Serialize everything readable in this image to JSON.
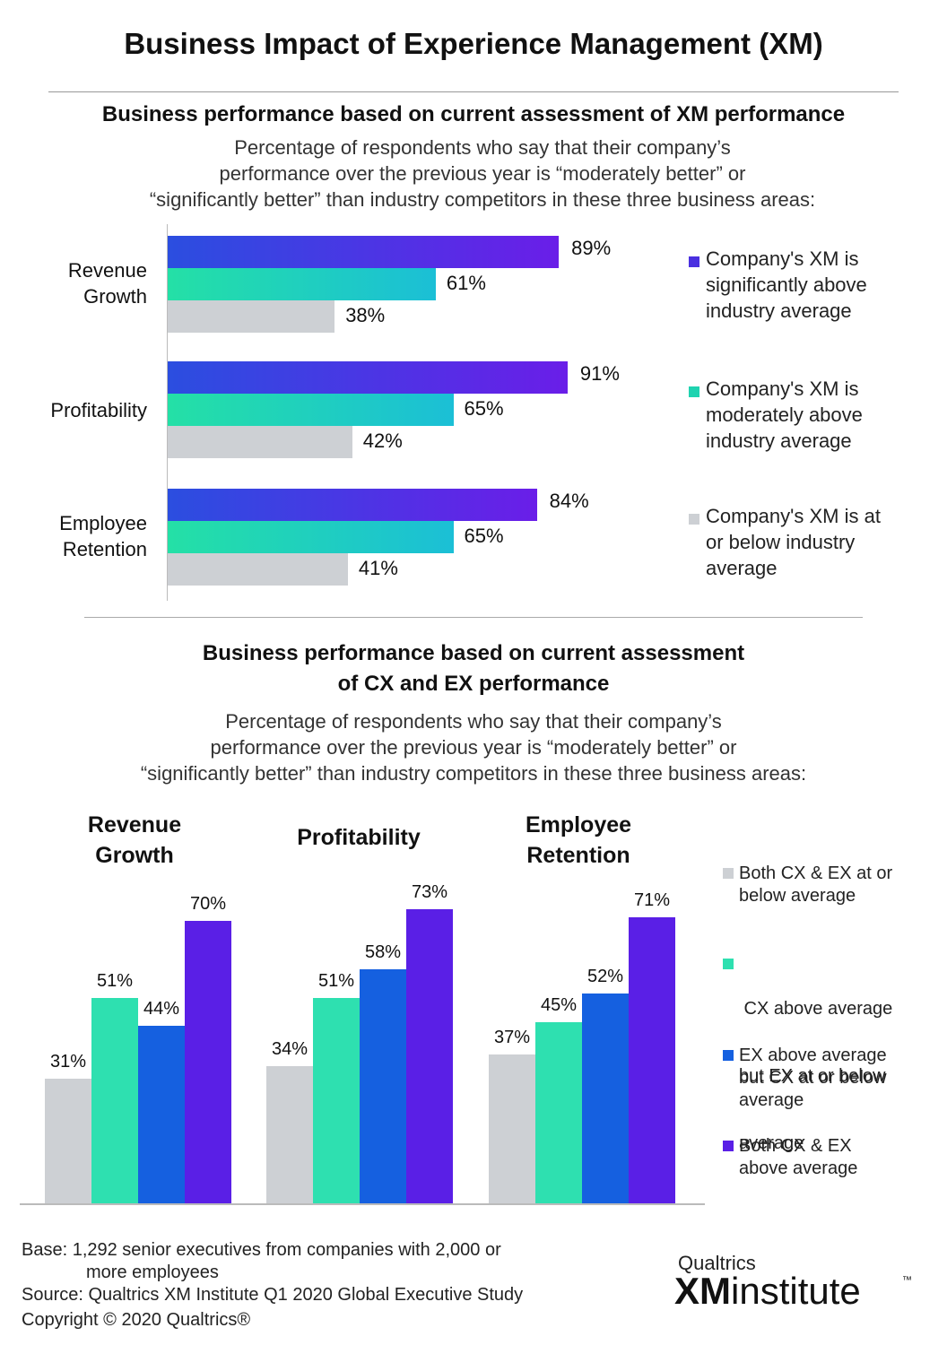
{
  "title": "Business Impact of Experience Management (XM)",
  "section1": {
    "title": "Business performance based on current assessment of XM performance",
    "subtitle": [
      "Percentage of respondents who say that their company’s",
      "performance over the previous year is “moderately better” or",
      "“significantly better” than industry competitors in these three business areas:"
    ]
  },
  "section2": {
    "title": [
      "Business performance based on current assessment",
      "of CX and EX performance"
    ],
    "subtitle": [
      "Percentage of respondents who say that their company’s",
      "performance over the previous year is “moderately better” or",
      "“significantly better” than industry competitors in these three business areas:"
    ]
  },
  "chart_data": [
    {
      "type": "bar",
      "orientation": "horizontal",
      "categories": [
        [
          "Revenue",
          "Growth"
        ],
        [
          "Profitability"
        ],
        [
          "Employee",
          "Retention"
        ]
      ],
      "series": [
        {
          "name": [
            "Company's XM is",
            "significantly above",
            "industry average"
          ],
          "values": [
            89,
            91,
            84
          ],
          "labels": [
            "89%",
            "91%",
            "84%"
          ],
          "color": "#5b2be0"
        },
        {
          "name": [
            "Company's XM is",
            "moderately above",
            "industry average"
          ],
          "values": [
            61,
            65,
            65
          ],
          "labels": [
            "61%",
            "65%",
            "65%"
          ],
          "color": "#1fd3b0"
        },
        {
          "name": [
            "Company's XM is at",
            "or below industry",
            "average"
          ],
          "values": [
            38,
            42,
            41
          ],
          "labels": [
            "38%",
            "42%",
            "41%"
          ],
          "color": "#cdd0d4"
        }
      ],
      "legend": "right"
    },
    {
      "type": "bar",
      "orientation": "vertical",
      "groups": [
        [
          "Revenue",
          "Growth"
        ],
        [
          "Profitability"
        ],
        [
          "Employee",
          "Retention"
        ]
      ],
      "series": [
        {
          "name": [
            "Both CX & EX at or",
            "below average"
          ],
          "values": [
            31,
            34,
            37
          ],
          "labels": [
            "31%",
            "34%",
            "37%"
          ],
          "color": "#cdd0d4"
        },
        {
          "name": [
            " CX above average",
            "but EX at or below",
            "average"
          ],
          "values": [
            51,
            51,
            45
          ],
          "labels": [
            "51%",
            "51%",
            "45%"
          ],
          "color": "#2ee0b0"
        },
        {
          "name": [
            "EX above average",
            "but CX at or below",
            "average"
          ],
          "values": [
            44,
            58,
            52
          ],
          "labels": [
            "44%",
            "58%",
            "52%"
          ],
          "color": "#1560e0"
        },
        {
          "name": [
            "Both CX & EX",
            "above average"
          ],
          "values": [
            70,
            73,
            71
          ],
          "labels": [
            "70%",
            "73%",
            "71%"
          ],
          "color": "#5a1fe6"
        }
      ],
      "legend": "right"
    }
  ],
  "footer": {
    "base": "Base: 1,292 senior executives from companies with 2,000 or",
    "base_cont": "more employees",
    "source": "Source: Qualtrics XM Institute Q1 2020 Global Executive Study",
    "copyright": "Copyright © 2020 Qualtrics®"
  },
  "logo": {
    "top": "Qualtrics",
    "xm": "XM",
    "word": "institute",
    "tm": "™"
  }
}
